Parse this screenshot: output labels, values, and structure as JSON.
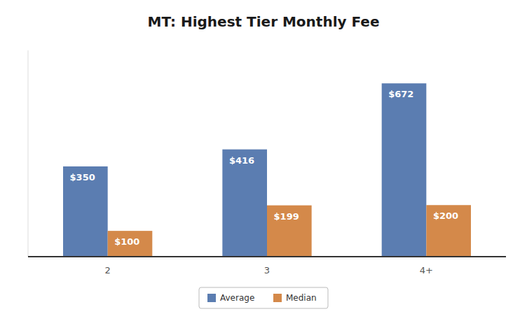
{
  "chart_data": {
    "type": "bar",
    "title": "MT: Highest Tier Monthly Fee",
    "categories": [
      "2",
      "3",
      "4+"
    ],
    "series": [
      {
        "name": "Average",
        "color": "#5B7DB1",
        "values": [
          350,
          416,
          672
        ],
        "value_labels": [
          "$350",
          "$416",
          "$672"
        ]
      },
      {
        "name": "Median",
        "color": "#D4894A",
        "values": [
          100,
          199,
          200
        ],
        "value_labels": [
          "$100",
          "$199",
          "$200"
        ]
      }
    ],
    "ylim": [
      0,
      800
    ],
    "grid": false,
    "legend": "bottom",
    "data_labels": true,
    "tick_labels": "x"
  }
}
